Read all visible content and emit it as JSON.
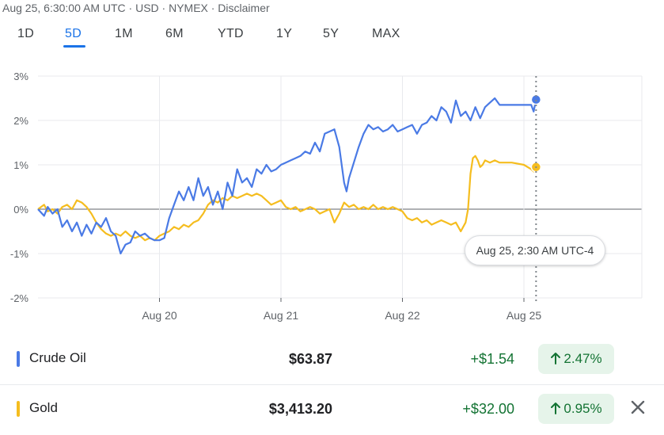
{
  "header": {
    "meta": "Aug 25, 6:30:00 AM UTC · USD · NYMEX · Disclaimer"
  },
  "tabs": [
    {
      "label": "1D",
      "active": false
    },
    {
      "label": "5D",
      "active": true
    },
    {
      "label": "1M",
      "active": false
    },
    {
      "label": "6M",
      "active": false
    },
    {
      "label": "YTD",
      "active": false
    },
    {
      "label": "1Y",
      "active": false
    },
    {
      "label": "5Y",
      "active": false
    },
    {
      "label": "MAX",
      "active": false
    }
  ],
  "tooltip": "Aug 25, 2:30 AM UTC-4",
  "chart_data": {
    "type": "line",
    "yticks": [
      "3%",
      "2%",
      "1%",
      "0%",
      "-1%",
      "-2%"
    ],
    "yvalues": [
      3,
      2,
      1,
      0,
      -1,
      -2
    ],
    "ylim": [
      -2,
      3
    ],
    "xticks": [
      "Aug 20",
      "Aug 21",
      "Aug 22",
      "Aug 25"
    ],
    "xtick_positions": [
      1,
      2,
      3,
      4
    ],
    "xlim": [
      0,
      4.95
    ],
    "grid": true,
    "hover_x": 4.1,
    "series": [
      {
        "name": "Crude Oil",
        "color": "#4a7ae5",
        "points": [
          [
            0.0,
            0.0
          ],
          [
            0.05,
            -0.15
          ],
          [
            0.08,
            0.05
          ],
          [
            0.12,
            -0.1
          ],
          [
            0.16,
            0.0
          ],
          [
            0.2,
            -0.4
          ],
          [
            0.24,
            -0.25
          ],
          [
            0.28,
            -0.5
          ],
          [
            0.32,
            -0.3
          ],
          [
            0.36,
            -0.6
          ],
          [
            0.4,
            -0.35
          ],
          [
            0.44,
            -0.55
          ],
          [
            0.48,
            -0.3
          ],
          [
            0.52,
            -0.4
          ],
          [
            0.56,
            -0.2
          ],
          [
            0.6,
            -0.5
          ],
          [
            0.64,
            -0.6
          ],
          [
            0.68,
            -1.0
          ],
          [
            0.72,
            -0.8
          ],
          [
            0.76,
            -0.75
          ],
          [
            0.8,
            -0.5
          ],
          [
            0.84,
            -0.6
          ],
          [
            0.88,
            -0.55
          ],
          [
            0.92,
            -0.65
          ],
          [
            0.96,
            -0.7
          ],
          [
            1.0,
            -0.7
          ],
          [
            1.04,
            -0.65
          ],
          [
            1.08,
            -0.2
          ],
          [
            1.12,
            0.1
          ],
          [
            1.16,
            0.4
          ],
          [
            1.2,
            0.2
          ],
          [
            1.24,
            0.5
          ],
          [
            1.28,
            0.2
          ],
          [
            1.32,
            0.7
          ],
          [
            1.36,
            0.3
          ],
          [
            1.4,
            0.5
          ],
          [
            1.44,
            0.1
          ],
          [
            1.48,
            0.4
          ],
          [
            1.52,
            0.0
          ],
          [
            1.56,
            0.6
          ],
          [
            1.6,
            0.3
          ],
          [
            1.64,
            0.9
          ],
          [
            1.68,
            0.6
          ],
          [
            1.72,
            0.7
          ],
          [
            1.76,
            0.5
          ],
          [
            1.8,
            0.9
          ],
          [
            1.84,
            0.8
          ],
          [
            1.88,
            1.0
          ],
          [
            1.92,
            0.85
          ],
          [
            1.96,
            0.9
          ],
          [
            2.0,
            1.0
          ],
          [
            2.04,
            1.05
          ],
          [
            2.08,
            1.1
          ],
          [
            2.12,
            1.15
          ],
          [
            2.16,
            1.2
          ],
          [
            2.2,
            1.3
          ],
          [
            2.24,
            1.25
          ],
          [
            2.28,
            1.5
          ],
          [
            2.32,
            1.3
          ],
          [
            2.36,
            1.7
          ],
          [
            2.4,
            1.75
          ],
          [
            2.44,
            1.8
          ],
          [
            2.48,
            1.4
          ],
          [
            2.52,
            0.6
          ],
          [
            2.54,
            0.4
          ],
          [
            2.56,
            0.7
          ],
          [
            2.6,
            1.05
          ],
          [
            2.64,
            1.4
          ],
          [
            2.68,
            1.7
          ],
          [
            2.72,
            1.9
          ],
          [
            2.76,
            1.8
          ],
          [
            2.8,
            1.85
          ],
          [
            2.84,
            1.75
          ],
          [
            2.88,
            1.8
          ],
          [
            2.92,
            1.9
          ],
          [
            2.96,
            1.75
          ],
          [
            3.0,
            1.8
          ],
          [
            3.04,
            1.85
          ],
          [
            3.08,
            1.9
          ],
          [
            3.12,
            1.7
          ],
          [
            3.16,
            1.9
          ],
          [
            3.2,
            1.95
          ],
          [
            3.24,
            2.1
          ],
          [
            3.28,
            2.0
          ],
          [
            3.32,
            2.3
          ],
          [
            3.36,
            2.2
          ],
          [
            3.4,
            1.95
          ],
          [
            3.44,
            2.45
          ],
          [
            3.48,
            2.1
          ],
          [
            3.52,
            2.2
          ],
          [
            3.56,
            2.0
          ],
          [
            3.6,
            2.3
          ],
          [
            3.64,
            2.05
          ],
          [
            3.68,
            2.3
          ],
          [
            3.72,
            2.4
          ],
          [
            3.76,
            2.5
          ],
          [
            3.8,
            2.35
          ],
          [
            3.9,
            2.35
          ],
          [
            4.0,
            2.35
          ],
          [
            4.06,
            2.35
          ],
          [
            4.08,
            2.2
          ],
          [
            4.1,
            2.47
          ]
        ]
      },
      {
        "name": "Gold",
        "color": "#f5bd1f",
        "points": [
          [
            0.0,
            0.0
          ],
          [
            0.05,
            0.1
          ],
          [
            0.08,
            -0.05
          ],
          [
            0.12,
            0.0
          ],
          [
            0.16,
            -0.1
          ],
          [
            0.2,
            0.05
          ],
          [
            0.24,
            0.1
          ],
          [
            0.28,
            0.0
          ],
          [
            0.32,
            0.2
          ],
          [
            0.36,
            0.15
          ],
          [
            0.4,
            0.05
          ],
          [
            0.44,
            -0.1
          ],
          [
            0.48,
            -0.3
          ],
          [
            0.52,
            -0.45
          ],
          [
            0.56,
            -0.55
          ],
          [
            0.6,
            -0.6
          ],
          [
            0.64,
            -0.55
          ],
          [
            0.68,
            -0.6
          ],
          [
            0.72,
            -0.5
          ],
          [
            0.76,
            -0.6
          ],
          [
            0.8,
            -0.65
          ],
          [
            0.84,
            -0.6
          ],
          [
            0.88,
            -0.7
          ],
          [
            0.92,
            -0.65
          ],
          [
            0.96,
            -0.7
          ],
          [
            1.0,
            -0.6
          ],
          [
            1.04,
            -0.55
          ],
          [
            1.08,
            -0.5
          ],
          [
            1.12,
            -0.4
          ],
          [
            1.16,
            -0.45
          ],
          [
            1.2,
            -0.35
          ],
          [
            1.24,
            -0.4
          ],
          [
            1.28,
            -0.3
          ],
          [
            1.32,
            -0.25
          ],
          [
            1.36,
            -0.1
          ],
          [
            1.4,
            0.1
          ],
          [
            1.44,
            0.2
          ],
          [
            1.48,
            0.15
          ],
          [
            1.52,
            0.25
          ],
          [
            1.56,
            0.2
          ],
          [
            1.6,
            0.3
          ],
          [
            1.64,
            0.25
          ],
          [
            1.68,
            0.3
          ],
          [
            1.72,
            0.35
          ],
          [
            1.76,
            0.3
          ],
          [
            1.8,
            0.35
          ],
          [
            1.84,
            0.3
          ],
          [
            1.88,
            0.2
          ],
          [
            1.92,
            0.1
          ],
          [
            1.96,
            0.15
          ],
          [
            2.0,
            0.2
          ],
          [
            2.04,
            0.05
          ],
          [
            2.08,
            0.0
          ],
          [
            2.12,
            0.05
          ],
          [
            2.16,
            -0.05
          ],
          [
            2.2,
            0.0
          ],
          [
            2.24,
            0.05
          ],
          [
            2.28,
            0.0
          ],
          [
            2.32,
            -0.1
          ],
          [
            2.36,
            -0.05
          ],
          [
            2.4,
            0.0
          ],
          [
            2.44,
            -0.3
          ],
          [
            2.48,
            -0.1
          ],
          [
            2.52,
            0.15
          ],
          [
            2.56,
            0.05
          ],
          [
            2.6,
            0.1
          ],
          [
            2.64,
            0.0
          ],
          [
            2.68,
            0.05
          ],
          [
            2.72,
            0.0
          ],
          [
            2.76,
            0.1
          ],
          [
            2.8,
            0.0
          ],
          [
            2.84,
            0.05
          ],
          [
            2.88,
            0.0
          ],
          [
            2.92,
            0.05
          ],
          [
            2.96,
            0.0
          ],
          [
            3.0,
            -0.05
          ],
          [
            3.04,
            -0.2
          ],
          [
            3.08,
            -0.25
          ],
          [
            3.12,
            -0.2
          ],
          [
            3.16,
            -0.3
          ],
          [
            3.2,
            -0.25
          ],
          [
            3.24,
            -0.35
          ],
          [
            3.28,
            -0.3
          ],
          [
            3.32,
            -0.25
          ],
          [
            3.36,
            -0.3
          ],
          [
            3.4,
            -0.35
          ],
          [
            3.44,
            -0.3
          ],
          [
            3.48,
            -0.5
          ],
          [
            3.52,
            -0.3
          ],
          [
            3.54,
            0.0
          ],
          [
            3.56,
            0.8
          ],
          [
            3.58,
            1.15
          ],
          [
            3.6,
            1.2
          ],
          [
            3.62,
            1.1
          ],
          [
            3.64,
            0.95
          ],
          [
            3.66,
            1.0
          ],
          [
            3.68,
            1.1
          ],
          [
            3.72,
            1.05
          ],
          [
            3.76,
            1.1
          ],
          [
            3.8,
            1.05
          ],
          [
            3.9,
            1.05
          ],
          [
            4.0,
            1.0
          ],
          [
            4.06,
            0.9
          ],
          [
            4.08,
            0.85
          ],
          [
            4.1,
            0.95
          ]
        ]
      }
    ]
  },
  "quotes": [
    {
      "name": "Crude Oil",
      "color": "#4a7ae5",
      "price": "$63.87",
      "change": "+$1.54",
      "pct": "2.47%"
    },
    {
      "name": "Gold",
      "color": "#f5bd1f",
      "price": "$3,413.20",
      "change": "+$32.00",
      "pct": "0.95%"
    }
  ],
  "icons": {
    "close": "close-icon",
    "arrow": "arrow-up-icon"
  }
}
